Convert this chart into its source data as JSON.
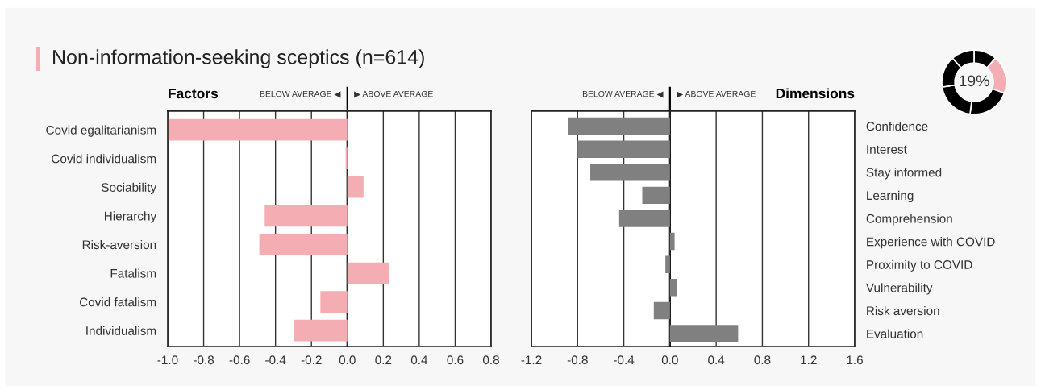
{
  "chart_data": [
    {
      "type": "bar",
      "orientation": "horizontal",
      "title": "Non-information-seeking sceptics (n=614)",
      "ylabel": "Factors",
      "annotations": [
        "BELOW AVERAGE ◀",
        "▶ ABOVE AVERAGE"
      ],
      "categories": [
        "Covid egalitarianism",
        "Covid individualism",
        "Sociability",
        "Hierarchy",
        "Risk-aversion",
        "Fatalism",
        "Covid fatalism",
        "Individualism"
      ],
      "values": [
        -1.0,
        -0.01,
        0.09,
        -0.46,
        -0.49,
        0.23,
        -0.15,
        -0.3
      ],
      "color": "#f4adb3",
      "xlim": [
        -1.0,
        0.8
      ],
      "xticks": [
        {
          "value": -1.0,
          "label": "-1.0"
        },
        {
          "value": -0.8,
          "label": "-0.8"
        },
        {
          "value": -0.6,
          "label": "-0.6"
        },
        {
          "value": -0.4,
          "label": "-0.4"
        },
        {
          "value": -0.2,
          "label": "-0.2"
        },
        {
          "value": 0.0,
          "label": "0.0"
        },
        {
          "value": 0.2,
          "label": "0.2"
        },
        {
          "value": 0.4,
          "label": "0.4"
        },
        {
          "value": 0.6,
          "label": "0.6"
        },
        {
          "value": 0.8,
          "label": "0.8"
        }
      ],
      "grid": "x",
      "ref_lines": [
        {
          "axis": "x",
          "value": 0
        }
      ]
    },
    {
      "type": "bar",
      "orientation": "horizontal",
      "ylabel": "Dimensions",
      "annotations": [
        "BELOW AVERAGE ◀",
        "▶ ABOVE AVERAGE"
      ],
      "categories": [
        "Confidence",
        "Interest",
        "Stay informed",
        "Learning",
        "Comprehension",
        "Experience with COVID",
        "Proximity to COVID",
        "Vulnerability",
        "Risk aversion",
        "Evaluation"
      ],
      "values": [
        -0.88,
        -0.8,
        -0.69,
        -0.24,
        -0.44,
        0.04,
        -0.04,
        0.06,
        -0.14,
        0.59
      ],
      "color": "#808080",
      "xlim": [
        -1.2,
        1.6
      ],
      "xticks": [
        {
          "value": -1.2,
          "label": "-1.2"
        },
        {
          "value": -0.8,
          "label": "-0.8"
        },
        {
          "value": -0.4,
          "label": "-0.4"
        },
        {
          "value": 0.0,
          "label": "0.0"
        },
        {
          "value": 0.4,
          "label": "0.4"
        },
        {
          "value": 0.8,
          "label": "0.8"
        },
        {
          "value": 1.2,
          "label": "1.2"
        },
        {
          "value": 1.6,
          "label": "1.6"
        }
      ],
      "grid": "x",
      "ref_lines": [
        {
          "axis": "x",
          "value": 0
        }
      ]
    },
    {
      "type": "donut",
      "categories": [
        null,
        null,
        null,
        null,
        null,
        null
      ],
      "values": [
        11.6,
        19,
        21.4,
        20.6,
        15.8,
        11.6
      ],
      "colors": [
        "#000000",
        "#f4adb3",
        "#000000",
        "#000000",
        "#000000",
        "#000000"
      ],
      "annotations": [
        "19%"
      ]
    }
  ]
}
